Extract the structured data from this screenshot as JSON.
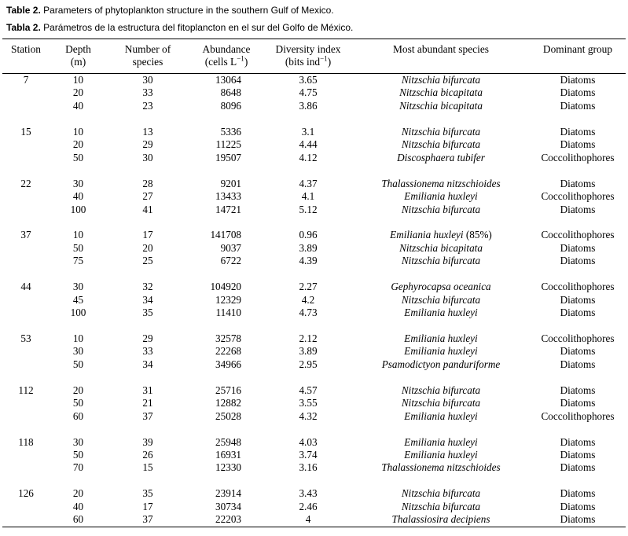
{
  "caption": {
    "en_label": "Table 2.",
    "en_text": " Parameters of phytoplankton structure in the southern Gulf of Mexico.",
    "es_label": "Tabla 2.",
    "es_text": " Parámetros de la estructura del fitoplancton en el sur del Golfo de México."
  },
  "columns": [
    {
      "l1": "Station",
      "l2a": "",
      "sup": "",
      "l2b": ""
    },
    {
      "l1": "Depth",
      "l2a": "(m)",
      "sup": "",
      "l2b": ""
    },
    {
      "l1": "Number of",
      "l2a": "species",
      "sup": "",
      "l2b": ""
    },
    {
      "l1": "Abundance",
      "l2a": "(cells L",
      "sup": "−1",
      "l2b": ")"
    },
    {
      "l1": "Diversity index",
      "l2a": "(bits ind",
      "sup": "−1",
      "l2b": ")"
    },
    {
      "l1": "Most abundant species",
      "l2a": "",
      "sup": "",
      "l2b": ""
    },
    {
      "l1": "Dominant group",
      "l2a": "",
      "sup": "",
      "l2b": ""
    }
  ],
  "rows": [
    {
      "station": "7",
      "depth": "10",
      "species_count": "30",
      "abundance": "13064",
      "diversity": "3.65",
      "species": "Nitzschia bifurcata",
      "species_note": "",
      "group": "Diatoms"
    },
    {
      "station": "",
      "depth": "20",
      "species_count": "33",
      "abundance": "8648",
      "diversity": "4.75",
      "species": "Nitzschia bicapitata",
      "species_note": "",
      "group": "Diatoms"
    },
    {
      "station": "",
      "depth": "40",
      "species_count": "23",
      "abundance": "8096",
      "diversity": "3.86",
      "species": "Nitzschia bicapitata",
      "species_note": "",
      "group": "Diatoms"
    },
    {
      "station": "",
      "depth": "",
      "species_count": "",
      "abundance": "",
      "diversity": "",
      "species": "",
      "species_note": "",
      "group": ""
    },
    {
      "station": "15",
      "depth": "10",
      "species_count": "13",
      "abundance": "5336",
      "diversity": "3.1",
      "species": "Nitzschia bifurcata",
      "species_note": "",
      "group": "Diatoms"
    },
    {
      "station": "",
      "depth": "20",
      "species_count": "29",
      "abundance": "11225",
      "diversity": "4.44",
      "species": "Nitzschia bifurcata",
      "species_note": "",
      "group": "Diatoms"
    },
    {
      "station": "",
      "depth": "50",
      "species_count": "30",
      "abundance": "19507",
      "diversity": "4.12",
      "species": "Discosphaera tubifer",
      "species_note": "",
      "group": "Coccolithophores"
    },
    {
      "station": "",
      "depth": "",
      "species_count": "",
      "abundance": "",
      "diversity": "",
      "species": "",
      "species_note": "",
      "group": ""
    },
    {
      "station": "22",
      "depth": "30",
      "species_count": "28",
      "abundance": "9201",
      "diversity": "4.37",
      "species": "Thalassionema nitzschioides",
      "species_note": "",
      "group": "Diatoms"
    },
    {
      "station": "",
      "depth": "40",
      "species_count": "27",
      "abundance": "13433",
      "diversity": "4.1",
      "species": "Emiliania huxleyi",
      "species_note": "",
      "group": "Coccolithophores"
    },
    {
      "station": "",
      "depth": "100",
      "species_count": "41",
      "abundance": "14721",
      "diversity": "5.12",
      "species": "Nitzschia bifurcata",
      "species_note": "",
      "group": "Diatoms"
    },
    {
      "station": "",
      "depth": "",
      "species_count": "",
      "abundance": "",
      "diversity": "",
      "species": "",
      "species_note": "",
      "group": ""
    },
    {
      "station": "37",
      "depth": "10",
      "species_count": "17",
      "abundance": "141708",
      "diversity": "0.96",
      "species": "Emiliania huxleyi",
      "species_note": " (85%)",
      "group": "Coccolithophores"
    },
    {
      "station": "",
      "depth": "50",
      "species_count": "20",
      "abundance": "9037",
      "diversity": "3.89",
      "species": "Nitzschia bicapitata",
      "species_note": "",
      "group": "Diatoms"
    },
    {
      "station": "",
      "depth": "75",
      "species_count": "25",
      "abundance": "6722",
      "diversity": "4.39",
      "species": "Nitzschia bifurcata",
      "species_note": "",
      "group": "Diatoms"
    },
    {
      "station": "",
      "depth": "",
      "species_count": "",
      "abundance": "",
      "diversity": "",
      "species": "",
      "species_note": "",
      "group": ""
    },
    {
      "station": "44",
      "depth": "30",
      "species_count": "32",
      "abundance": "104920",
      "diversity": "2.27",
      "species": "Gephyrocapsa oceanica",
      "species_note": "",
      "group": "Coccolithophores"
    },
    {
      "station": "",
      "depth": "45",
      "species_count": "34",
      "abundance": "12329",
      "diversity": "4.2",
      "species": "Nitzschia bifurcata",
      "species_note": "",
      "group": "Diatoms"
    },
    {
      "station": "",
      "depth": "100",
      "species_count": "35",
      "abundance": "11410",
      "diversity": "4.73",
      "species": "Emiliania huxleyi",
      "species_note": "",
      "group": "Diatoms"
    },
    {
      "station": "",
      "depth": "",
      "species_count": "",
      "abundance": "",
      "diversity": "",
      "species": "",
      "species_note": "",
      "group": ""
    },
    {
      "station": "53",
      "depth": "10",
      "species_count": "29",
      "abundance": "32578",
      "diversity": "2.12",
      "species": "Emiliania huxleyi",
      "species_note": "",
      "group": "Coccolithophores"
    },
    {
      "station": "",
      "depth": "30",
      "species_count": "33",
      "abundance": "22268",
      "diversity": "3.89",
      "species": "Emiliania huxleyi",
      "species_note": "",
      "group": "Diatoms"
    },
    {
      "station": "",
      "depth": "50",
      "species_count": "34",
      "abundance": "34966",
      "diversity": "2.95",
      "species": "Psamodictyon panduriforme",
      "species_note": "",
      "group": "Diatoms"
    },
    {
      "station": "",
      "depth": "",
      "species_count": "",
      "abundance": "",
      "diversity": "",
      "species": "",
      "species_note": "",
      "group": ""
    },
    {
      "station": "112",
      "depth": "20",
      "species_count": "31",
      "abundance": "25716",
      "diversity": "4.57",
      "species": "Nitzschia bifurcata",
      "species_note": "",
      "group": "Diatoms"
    },
    {
      "station": "",
      "depth": "50",
      "species_count": "21",
      "abundance": "12882",
      "diversity": "3.55",
      "species": "Nitzschia bifurcata",
      "species_note": "",
      "group": "Diatoms"
    },
    {
      "station": "",
      "depth": "60",
      "species_count": "37",
      "abundance": "25028",
      "diversity": "4.32",
      "species": "Emiliania huxleyi",
      "species_note": "",
      "group": "Coccolithophores"
    },
    {
      "station": "",
      "depth": "",
      "species_count": "",
      "abundance": "",
      "diversity": "",
      "species": "",
      "species_note": "",
      "group": ""
    },
    {
      "station": "118",
      "depth": "30",
      "species_count": "39",
      "abundance": "25948",
      "diversity": "4.03",
      "species": "Emiliania huxleyi",
      "species_note": "",
      "group": "Diatoms"
    },
    {
      "station": "",
      "depth": "50",
      "species_count": "26",
      "abundance": "16931",
      "diversity": "3.74",
      "species": "Emiliania huxleyi",
      "species_note": "",
      "group": "Diatoms"
    },
    {
      "station": "",
      "depth": "70",
      "species_count": "15",
      "abundance": "12330",
      "diversity": "3.16",
      "species": "Thalassionema nitzschioides",
      "species_note": "",
      "group": "Diatoms"
    },
    {
      "station": "",
      "depth": "",
      "species_count": "",
      "abundance": "",
      "diversity": "",
      "species": "",
      "species_note": "",
      "group": ""
    },
    {
      "station": "126",
      "depth": "20",
      "species_count": "35",
      "abundance": "23914",
      "diversity": "3.43",
      "species": "Nitzschia bifurcata",
      "species_note": "",
      "group": "Diatoms"
    },
    {
      "station": "",
      "depth": "40",
      "species_count": "17",
      "abundance": "30734",
      "diversity": "2.46",
      "species": "Nitzschia bifurcata",
      "species_note": "",
      "group": "Diatoms"
    },
    {
      "station": "",
      "depth": "60",
      "species_count": "37",
      "abundance": "22203",
      "diversity": "4",
      "species": "Thalassiosira decipiens",
      "species_note": "",
      "group": "Diatoms"
    }
  ]
}
